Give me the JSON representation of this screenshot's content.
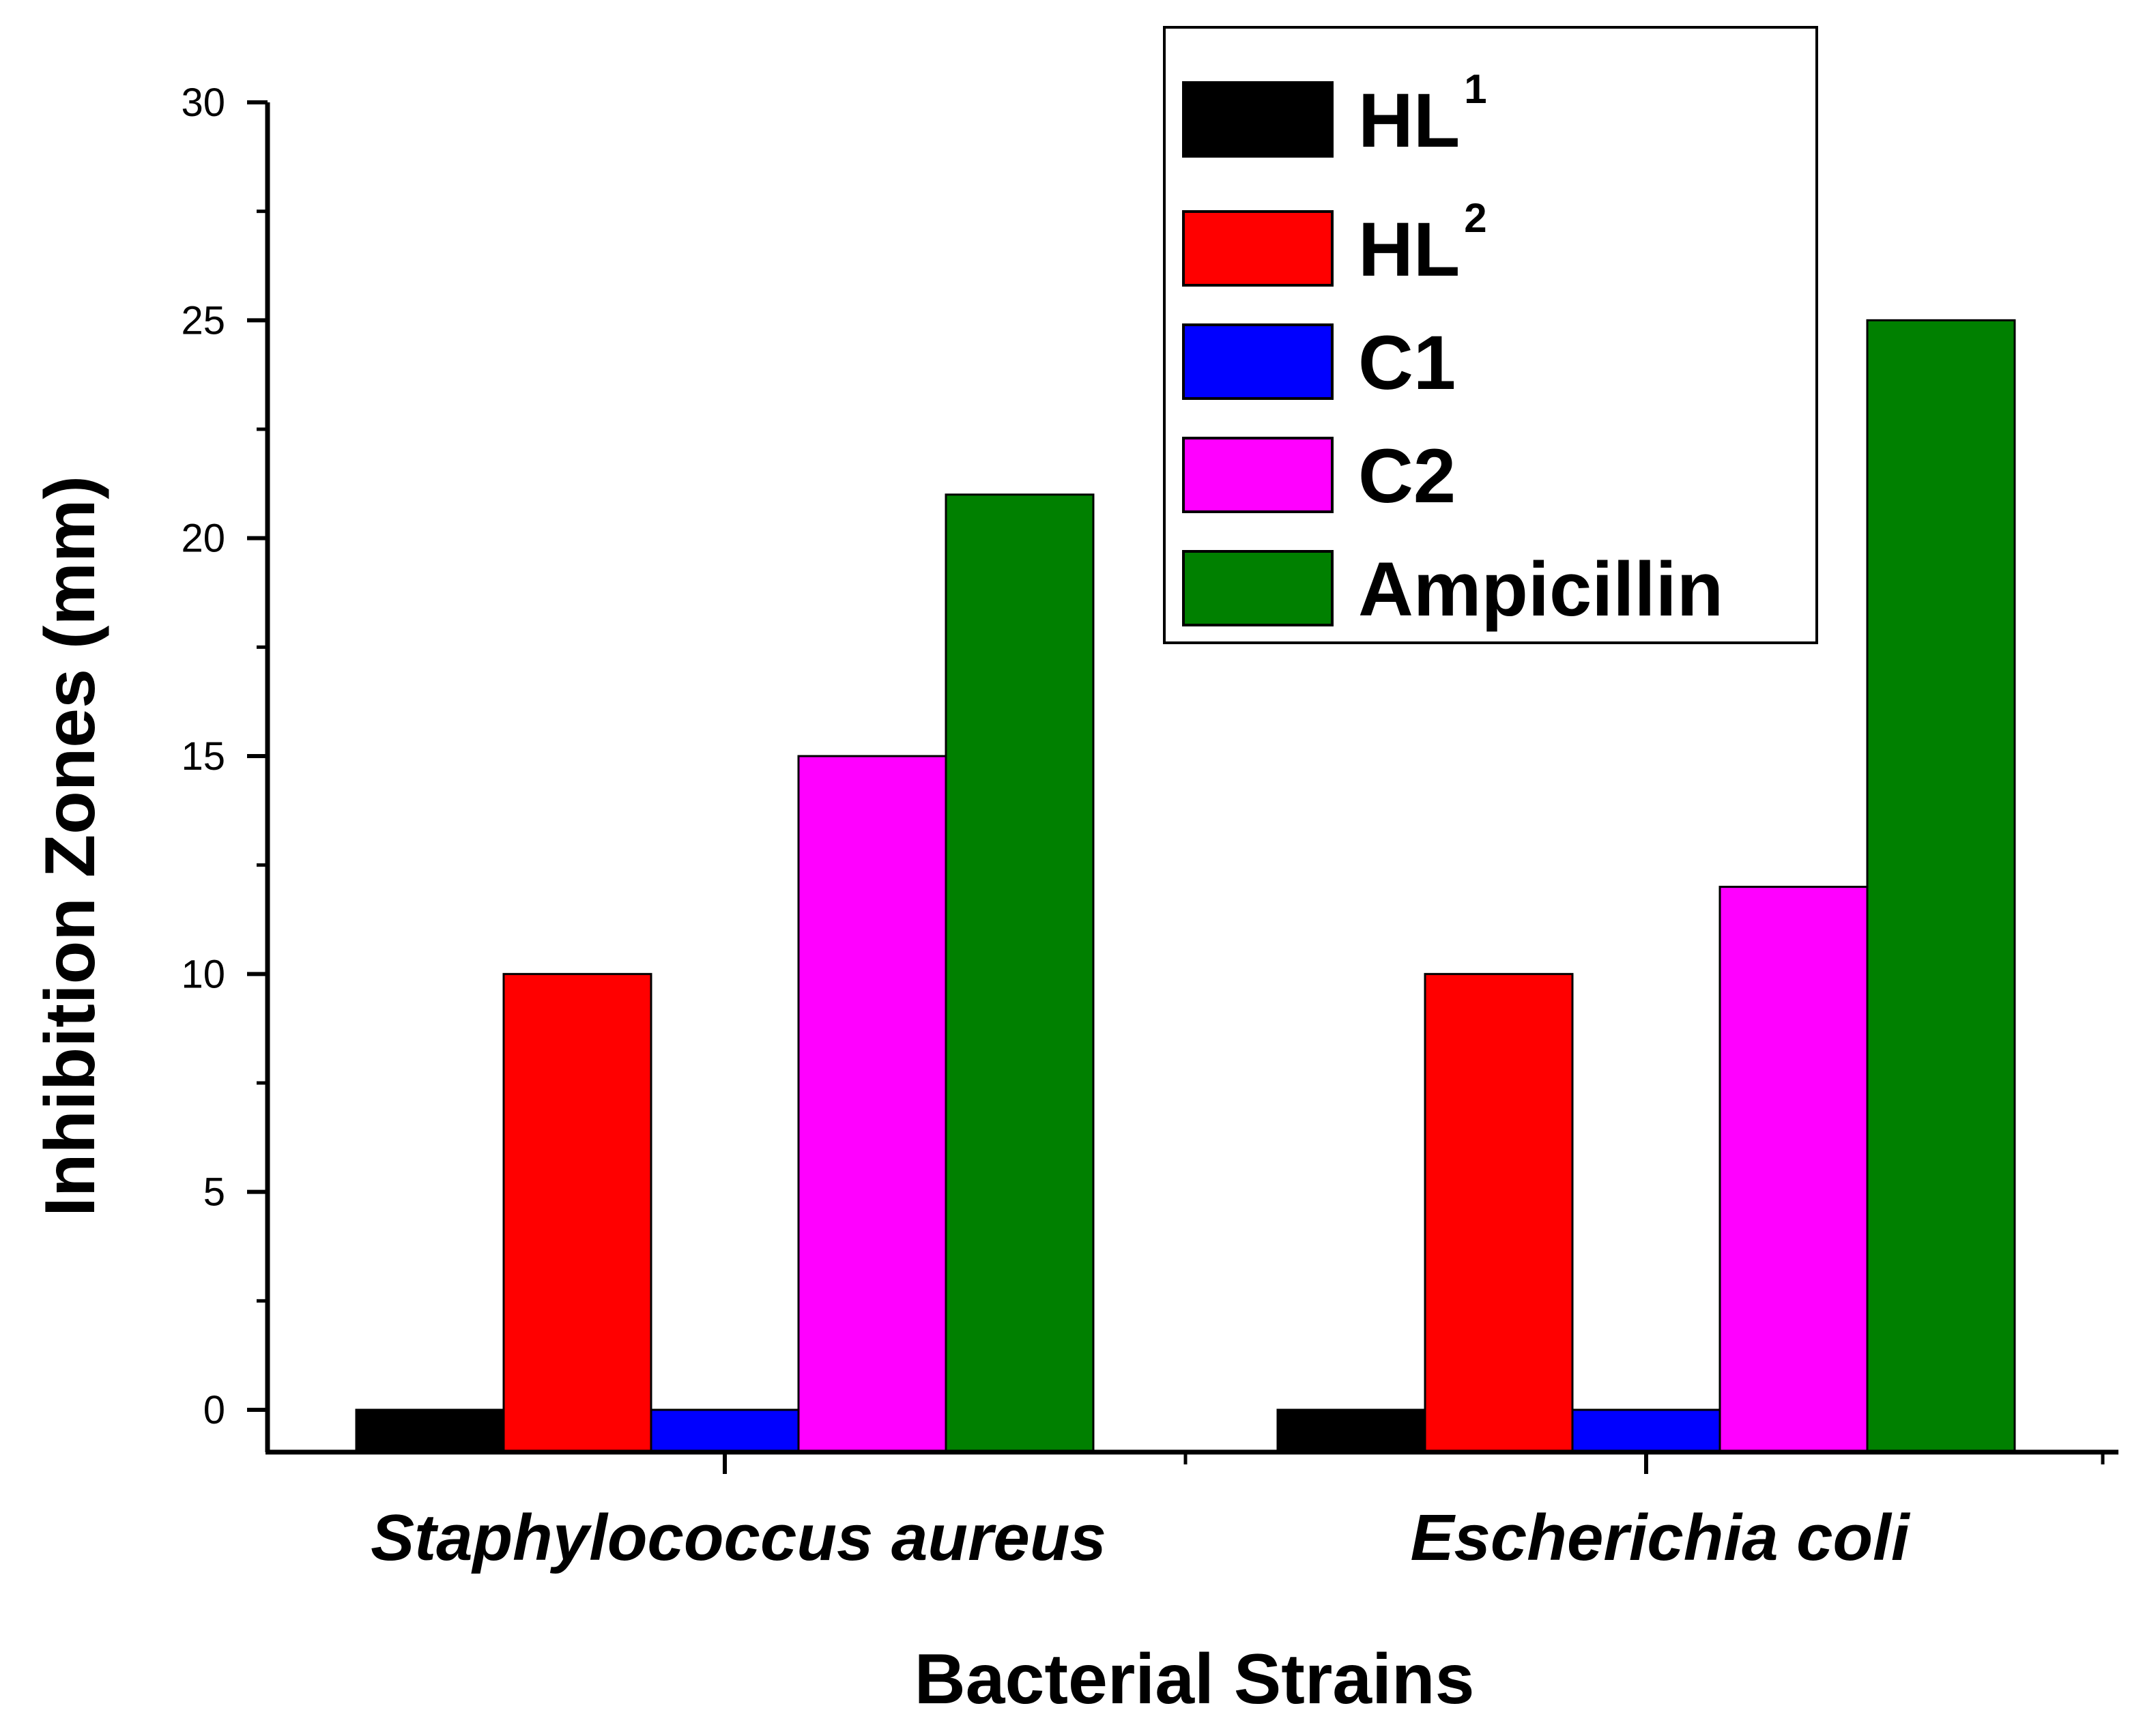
{
  "chart_data": {
    "type": "bar",
    "title": "",
    "xlabel": "Bacterial Strains",
    "ylabel": "Inhibition Zones (mm)",
    "ylim": [
      0,
      30
    ],
    "yticks": [
      "0",
      "5",
      "10",
      "15",
      "20",
      "25",
      "30"
    ],
    "categories": [
      "Staphylococcus aureus",
      "Escherichia coli"
    ],
    "series": [
      {
        "name": "HL",
        "sup": "1",
        "color": "#000000",
        "values": [
          0,
          0
        ]
      },
      {
        "name": "HL",
        "sup": "2",
        "color": "#ff0000",
        "values": [
          10,
          10
        ]
      },
      {
        "name": "C1",
        "sup": "",
        "color": "#0000ff",
        "values": [
          0,
          0
        ]
      },
      {
        "name": "C2",
        "sup": "",
        "color": "#ff00ff",
        "values": [
          15,
          12
        ]
      },
      {
        "name": "Ampicillin",
        "sup": "",
        "color": "#008000",
        "values": [
          21,
          25
        ]
      }
    ],
    "legend_position": "top-right",
    "grid": false
  }
}
